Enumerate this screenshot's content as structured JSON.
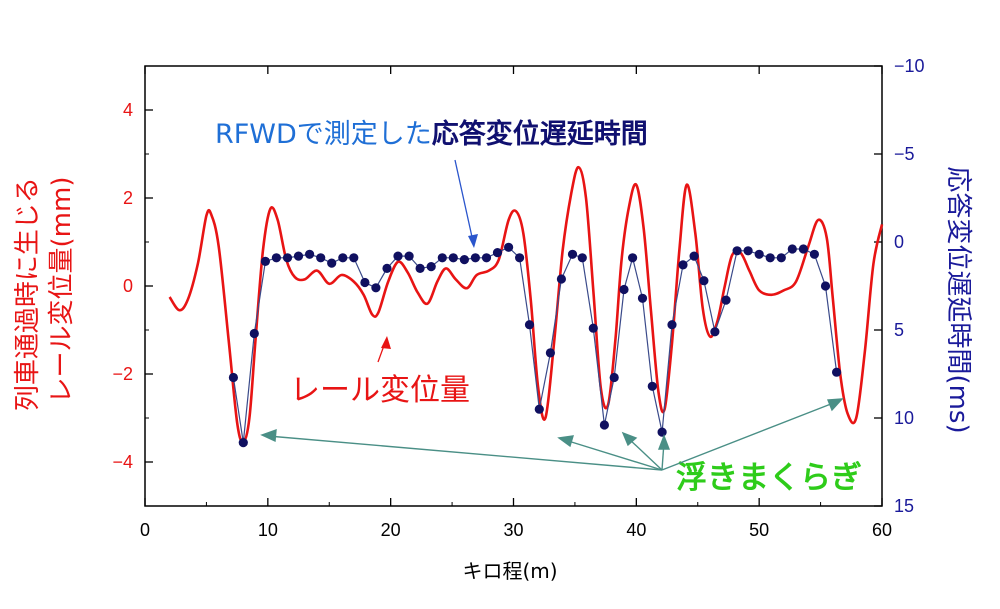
{
  "chart_data": {
    "type": "line",
    "xlabel": "キロ程(m)",
    "ylabel_left": "列車通過時に生じる\nレール変位量(mm)",
    "ylabel_right": "応答変位遅延時間(ms)",
    "xlim": [
      0,
      60
    ],
    "ylim_left": [
      -5,
      5
    ],
    "ylim_right": [
      -10,
      15
    ],
    "right_axis_inverted": true,
    "x_ticks": [
      0,
      10,
      20,
      30,
      40,
      50,
      60
    ],
    "y_left_ticks": [
      -4,
      -2,
      0,
      2,
      4
    ],
    "y_right_ticks": [
      -10,
      -5,
      0,
      5,
      10,
      15
    ],
    "grid": false,
    "colors": {
      "rail": "#e81414",
      "delay_line": "#3a4a8a",
      "delay_marker": "#101060",
      "axis_left": "#e81414",
      "axis_right": "#1a1a9a",
      "annotation_blue": "#1f6fd6",
      "annotation_green": "#2ecc1a",
      "arrow_teal": "#4a8f86"
    },
    "series": [
      {
        "name": "レール変位量",
        "axis": "left",
        "x": [
          2.0,
          2.8,
          3.5,
          4.3,
          5.0,
          5.4,
          6.0,
          6.8,
          7.5,
          8.0,
          8.5,
          9.0,
          9.6,
          10.2,
          10.8,
          11.5,
          12.2,
          13.0,
          14.0,
          15.0,
          16.0,
          17.0,
          17.8,
          18.5,
          19.0,
          19.8,
          20.6,
          21.4,
          22.2,
          23.0,
          23.8,
          24.5,
          25.3,
          26.2,
          27.0,
          28.0,
          28.8,
          29.6,
          30.2,
          30.8,
          31.4,
          32.0,
          32.6,
          33.3,
          34.0,
          34.7,
          35.3,
          35.9,
          36.5,
          37.1,
          37.7,
          38.3,
          38.8,
          39.4,
          40.0,
          40.6,
          41.2,
          41.8,
          42.3,
          42.9,
          43.5,
          44.1,
          44.8,
          45.4,
          46.0,
          46.6,
          47.2,
          47.8,
          48.5,
          49.2,
          50.0,
          51.0,
          52.0,
          53.0,
          54.0,
          54.8,
          55.5,
          56.0,
          56.6,
          57.2,
          57.9,
          58.6,
          59.3,
          60.0
        ],
        "y": [
          -0.25,
          -0.55,
          -0.3,
          0.5,
          1.6,
          1.62,
          0.9,
          -1.2,
          -3.1,
          -3.55,
          -3.0,
          -1.2,
          0.8,
          1.75,
          1.5,
          0.6,
          0.2,
          0.15,
          0.35,
          0.05,
          0.25,
          0.1,
          -0.2,
          -0.65,
          -0.6,
          0.1,
          0.55,
          0.3,
          -0.15,
          -0.4,
          0.1,
          0.4,
          0.15,
          -0.05,
          0.25,
          0.35,
          0.6,
          1.5,
          1.7,
          1.2,
          -0.3,
          -2.3,
          -3.0,
          -1.3,
          0.8,
          2.1,
          2.7,
          2.0,
          -0.1,
          -2.3,
          -2.7,
          -1.2,
          0.6,
          1.8,
          2.3,
          1.3,
          -0.6,
          -2.4,
          -2.8,
          -1.3,
          0.8,
          2.3,
          1.2,
          -0.5,
          -1.15,
          -0.8,
          0.0,
          0.7,
          0.75,
          0.35,
          -0.1,
          -0.2,
          -0.1,
          0.1,
          0.9,
          1.5,
          1.1,
          -0.3,
          -2.0,
          -2.9,
          -3.0,
          -1.5,
          0.5,
          1.4
        ]
      },
      {
        "name": "応答変位遅延時間",
        "axis": "right",
        "x": [
          7.2,
          8.0,
          8.9,
          9.8,
          10.7,
          11.6,
          12.5,
          13.4,
          14.3,
          15.2,
          16.1,
          17.0,
          17.9,
          18.8,
          19.7,
          20.6,
          21.5,
          22.4,
          23.3,
          24.2,
          25.1,
          26.0,
          26.9,
          27.8,
          28.7,
          29.6,
          30.5,
          31.3,
          32.1,
          33.0,
          33.9,
          34.8,
          35.6,
          36.5,
          37.4,
          38.2,
          39.0,
          39.7,
          40.5,
          41.3,
          42.1,
          42.9,
          43.8,
          44.7,
          45.5,
          46.4,
          47.3,
          48.2,
          49.1,
          50.0,
          50.9,
          51.8,
          52.7,
          53.6,
          54.5,
          55.4,
          56.3
        ],
        "y": [
          7.7,
          11.4,
          5.2,
          1.1,
          0.9,
          0.9,
          0.8,
          0.7,
          0.9,
          1.2,
          0.9,
          0.9,
          2.3,
          2.6,
          1.5,
          0.8,
          0.8,
          1.5,
          1.4,
          0.9,
          0.9,
          1.0,
          0.9,
          0.9,
          0.6,
          0.3,
          0.9,
          4.7,
          9.5,
          6.3,
          2.1,
          0.7,
          0.9,
          4.9,
          10.4,
          7.7,
          2.7,
          0.9,
          3.2,
          8.2,
          10.8,
          4.7,
          1.3,
          0.8,
          2.2,
          5.1,
          3.3,
          0.5,
          0.5,
          0.7,
          0.9,
          0.9,
          0.4,
          0.4,
          0.7,
          2.5,
          7.4
        ]
      }
    ],
    "annotations": {
      "blue_prefix": "RFWDで測定した",
      "blue_bold": "応答変位遅延時間",
      "red_label": "レール変位量",
      "green_label": "浮きまくらぎ"
    }
  }
}
